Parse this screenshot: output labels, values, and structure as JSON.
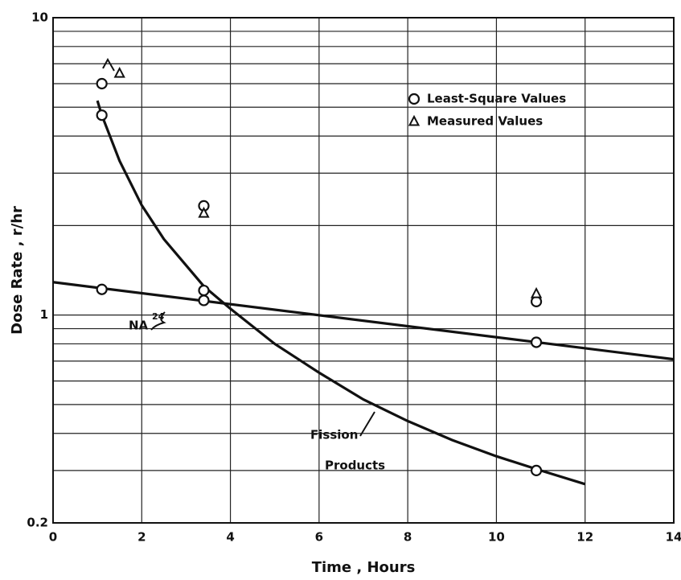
{
  "chart_data": {
    "type": "scatter",
    "xlabel": "Time , Hours",
    "ylabel": "Dose Rate , r/hr",
    "xlim": [
      0,
      14
    ],
    "xticks": [
      0,
      2,
      4,
      6,
      8,
      10,
      12,
      14
    ],
    "ylim": [
      0.2,
      10
    ],
    "yticks": [
      0.2,
      1,
      10
    ],
    "minor_yticks": [
      0.3,
      0.4,
      0.5,
      0.6,
      0.7,
      0.8,
      0.9,
      2,
      3,
      4,
      5,
      6,
      7,
      8,
      9
    ],
    "log_y": true,
    "grid": true,
    "legend": "upper right",
    "series": [
      {
        "name": "Least-Square Values",
        "marker": "circle",
        "color": "#111111",
        "x": [
          1.1,
          1.1,
          1.1,
          3.4,
          3.4,
          3.4,
          10.9,
          10.9,
          10.9
        ],
        "values": [
          6.0,
          4.7,
          1.22,
          2.33,
          1.21,
          1.12,
          1.11,
          0.81,
          0.3
        ]
      },
      {
        "name": "Measured Values",
        "marker": "triangle",
        "color": "#111111",
        "x": [
          1.5,
          3.4,
          10.9
        ],
        "values": [
          6.5,
          2.2,
          1.18
        ]
      }
    ],
    "curves": [
      {
        "color": "#111111",
        "x": [
          0,
          14
        ],
        "values": [
          1.29,
          0.71
        ]
      },
      {
        "color": "#111111",
        "x": [
          1.0,
          1.1,
          1.5,
          2,
          2.5,
          3,
          3.4,
          4,
          5,
          6,
          7,
          8,
          9,
          10,
          11,
          12
        ],
        "values": [
          5.26,
          4.7,
          3.3,
          2.34,
          1.8,
          1.47,
          1.25,
          1.05,
          0.8,
          0.64,
          0.52,
          0.44,
          0.38,
          0.335,
          0.3,
          0.27
        ]
      }
    ],
    "annotations": [
      {
        "text": "NA",
        "sup": "24"
      },
      {
        "text": "Fission"
      },
      {
        "text": "Products"
      }
    ]
  }
}
